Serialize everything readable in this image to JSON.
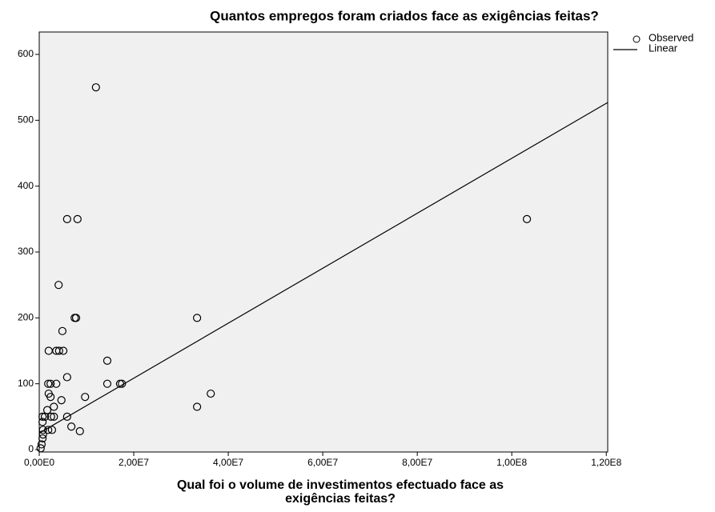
{
  "chart_data": {
    "type": "scatter",
    "title": "Quantos empregos foram criados face as exigências feitas?",
    "xlabel": "Qual foi o volume de investimentos efectuado face as exigências feitas?",
    "xlim": [
      0,
      120300000
    ],
    "ylim": [
      -3.6,
      634
    ],
    "xticks": [
      {
        "value": 0,
        "label": "0,00E0"
      },
      {
        "value": 20000000,
        "label": "2,00E7"
      },
      {
        "value": 40000000,
        "label": "4,00E7"
      },
      {
        "value": 60000000,
        "label": "6,00E7"
      },
      {
        "value": 80000000,
        "label": "8,00E7"
      },
      {
        "value": 100000000,
        "label": "1,00E8"
      },
      {
        "value": 120000000,
        "label": "1,20E8"
      }
    ],
    "yticks": [
      0,
      100,
      200,
      300,
      400,
      500,
      600
    ],
    "series": [
      {
        "name": "Observed",
        "color": "#000000",
        "x": [
          12000000,
          5900000,
          8100000,
          103200000,
          4100000,
          7500000,
          7800000,
          33400000,
          4900000,
          2000000,
          3600000,
          4200000,
          5100000,
          14400000,
          5900000,
          1900000,
          2400000,
          3600000,
          14400000,
          17100000,
          17500000,
          2000000,
          36300000,
          2400000,
          9700000,
          4700000,
          33400000,
          3100000,
          1700000,
          2500000,
          3100000,
          700000,
          1200000,
          5900000,
          800000,
          1900000,
          2700000,
          6800000,
          8600000,
          700000,
          700000,
          800000,
          500000,
          300000
        ],
        "values": [
          550,
          350,
          350,
          350,
          250,
          200,
          200,
          200,
          180,
          150,
          150,
          150,
          150,
          135,
          110,
          100,
          100,
          100,
          100,
          100,
          100,
          85,
          85,
          80,
          80,
          75,
          65,
          65,
          60,
          50,
          50,
          50,
          50,
          50,
          30,
          30,
          30,
          35,
          28,
          42,
          17,
          23,
          8,
          2
        ]
      },
      {
        "name": "Linear",
        "color": "#000000",
        "x": [
          0,
          120300000
        ],
        "values": [
          25,
          527
        ]
      }
    ]
  }
}
